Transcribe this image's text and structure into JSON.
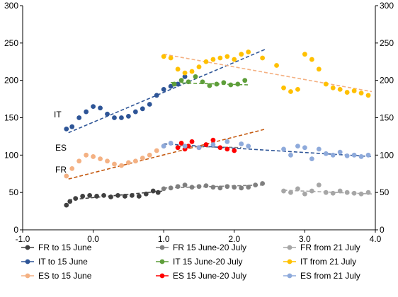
{
  "chart_data": {
    "type": "scatter",
    "xlim": [
      -1.0,
      4.0
    ],
    "ylim": [
      0,
      300
    ],
    "x_ticks": [
      "-1.0",
      "0.0",
      "1.0",
      "2.0",
      "3.0",
      "4.0"
    ],
    "y_ticks": [
      "0",
      "50",
      "100",
      "150",
      "200",
      "250",
      "300"
    ],
    "grid": false,
    "legend_position": "bottom",
    "annotations": [
      "IT",
      "ES",
      "FR"
    ],
    "series": [
      {
        "name": "FR to 15 June",
        "color": "#404040",
        "points": [
          [
            -0.38,
            33
          ],
          [
            -0.33,
            38
          ],
          [
            -0.25,
            42
          ],
          [
            -0.15,
            45
          ],
          [
            -0.05,
            46
          ],
          [
            0.05,
            45
          ],
          [
            0.15,
            46
          ],
          [
            0.25,
            44
          ],
          [
            0.35,
            46
          ],
          [
            0.45,
            45
          ],
          [
            0.55,
            46
          ],
          [
            0.65,
            45
          ],
          [
            0.75,
            48
          ],
          [
            0.85,
            52
          ],
          [
            0.92,
            50
          ]
        ]
      },
      {
        "name": "FR 15 June-20 July",
        "color": "#7f7f7f",
        "points": [
          [
            1.0,
            55
          ],
          [
            1.1,
            56
          ],
          [
            1.2,
            58
          ],
          [
            1.3,
            60
          ],
          [
            1.4,
            57
          ],
          [
            1.5,
            58
          ],
          [
            1.6,
            59
          ],
          [
            1.7,
            57
          ],
          [
            1.8,
            56
          ],
          [
            1.9,
            58
          ],
          [
            2.0,
            57
          ],
          [
            2.1,
            56
          ],
          [
            2.2,
            57
          ],
          [
            2.3,
            60
          ],
          [
            2.4,
            62
          ]
        ]
      },
      {
        "name": "FR from 21 July",
        "color": "#a6a6a6",
        "points": [
          [
            2.7,
            52
          ],
          [
            2.8,
            50
          ],
          [
            2.9,
            55
          ],
          [
            3.0,
            48
          ],
          [
            3.1,
            52
          ],
          [
            3.2,
            60
          ],
          [
            3.3,
            50
          ],
          [
            3.4,
            49
          ],
          [
            3.5,
            52
          ],
          [
            3.6,
            50
          ],
          [
            3.7,
            49
          ],
          [
            3.8,
            48
          ],
          [
            3.9,
            50
          ]
        ]
      },
      {
        "name": "IT to 15 June",
        "color": "#2e5597",
        "points": [
          [
            -0.38,
            135
          ],
          [
            -0.3,
            138
          ],
          [
            -0.2,
            150
          ],
          [
            -0.1,
            158
          ],
          [
            0.0,
            165
          ],
          [
            0.1,
            163
          ],
          [
            0.2,
            155
          ],
          [
            0.3,
            150
          ],
          [
            0.4,
            150
          ],
          [
            0.5,
            152
          ],
          [
            0.6,
            158
          ],
          [
            0.7,
            162
          ],
          [
            0.8,
            168
          ],
          [
            0.9,
            180
          ],
          [
            1.0,
            188
          ],
          [
            1.1,
            192
          ],
          [
            1.2,
            195
          ],
          [
            1.3,
            205
          ]
        ]
      },
      {
        "name": "IT 15 June-20 July",
        "color": "#5e9e3a",
        "points": [
          [
            1.15,
            195
          ],
          [
            1.25,
            200
          ],
          [
            1.35,
            198
          ],
          [
            1.45,
            205
          ],
          [
            1.55,
            198
          ],
          [
            1.65,
            193
          ],
          [
            1.75,
            195
          ],
          [
            1.85,
            197
          ],
          [
            1.95,
            194
          ],
          [
            2.05,
            195
          ],
          [
            2.15,
            200
          ]
        ]
      },
      {
        "name": "IT from 21 July",
        "color": "#ffc000",
        "points": [
          [
            1.0,
            232
          ],
          [
            1.1,
            230
          ],
          [
            1.2,
            215
          ],
          [
            1.3,
            210
          ],
          [
            1.4,
            212
          ],
          [
            1.5,
            218
          ],
          [
            1.6,
            225
          ],
          [
            1.7,
            228
          ],
          [
            1.8,
            230
          ],
          [
            1.9,
            232
          ],
          [
            2.0,
            228
          ],
          [
            2.1,
            235
          ],
          [
            2.2,
            238
          ],
          [
            2.4,
            230
          ],
          [
            2.6,
            220
          ],
          [
            2.7,
            190
          ],
          [
            2.8,
            185
          ],
          [
            2.9,
            188
          ],
          [
            3.0,
            235
          ],
          [
            3.1,
            228
          ],
          [
            3.2,
            215
          ],
          [
            3.3,
            195
          ],
          [
            3.4,
            190
          ],
          [
            3.5,
            188
          ],
          [
            3.6,
            184
          ],
          [
            3.7,
            186
          ],
          [
            3.8,
            183
          ],
          [
            3.9,
            180
          ]
        ]
      },
      {
        "name": "ES to 15 June",
        "color": "#f4b183",
        "points": [
          [
            -0.38,
            72
          ],
          [
            -0.3,
            82
          ],
          [
            -0.2,
            92
          ],
          [
            -0.1,
            100
          ],
          [
            0.0,
            98
          ],
          [
            0.1,
            95
          ],
          [
            0.2,
            92
          ],
          [
            0.3,
            88
          ],
          [
            0.4,
            86
          ],
          [
            0.5,
            90
          ],
          [
            0.6,
            92
          ],
          [
            0.7,
            96
          ],
          [
            0.8,
            100
          ],
          [
            0.9,
            106
          ],
          [
            1.0,
            112
          ]
        ]
      },
      {
        "name": "ES 15 June-20 July",
        "color": "#ff0000",
        "points": [
          [
            1.2,
            110
          ],
          [
            1.25,
            116
          ],
          [
            1.3,
            108
          ],
          [
            1.35,
            112
          ],
          [
            1.4,
            118
          ],
          [
            1.5,
            110
          ],
          [
            1.6,
            114
          ],
          [
            1.7,
            120
          ],
          [
            1.8,
            110
          ],
          [
            1.9,
            108
          ],
          [
            2.0,
            106
          ]
        ]
      },
      {
        "name": "ES from 21 July",
        "color": "#8eaadb",
        "points": [
          [
            1.0,
            112
          ],
          [
            1.1,
            116
          ],
          [
            1.3,
            112
          ],
          [
            1.5,
            110
          ],
          [
            1.7,
            114
          ],
          [
            1.9,
            118
          ],
          [
            2.1,
            115
          ],
          [
            2.2,
            112
          ],
          [
            2.7,
            108
          ],
          [
            2.8,
            100
          ],
          [
            2.9,
            112
          ],
          [
            3.0,
            110
          ],
          [
            3.1,
            95
          ],
          [
            3.2,
            108
          ],
          [
            3.3,
            102
          ],
          [
            3.4,
            100
          ],
          [
            3.5,
            104
          ],
          [
            3.6,
            99
          ],
          [
            3.7,
            100
          ],
          [
            3.8,
            98
          ],
          [
            3.9,
            100
          ]
        ]
      }
    ],
    "trendlines": [
      {
        "series": "FR to 15 June",
        "color": "#404040",
        "x": [
          -0.35,
          1.0
        ],
        "y": [
          40,
          52
        ]
      },
      {
        "series": "FR 15 June-20 July",
        "color": "#7f7f7f",
        "x": [
          1.0,
          2.4
        ],
        "y": [
          56,
          60
        ]
      },
      {
        "series": "FR from 21 July",
        "color": "#a6a6a6",
        "x": [
          2.7,
          3.95
        ],
        "y": [
          53,
          48
        ]
      },
      {
        "series": "IT to 15 June",
        "color": "#2e5597",
        "x": [
          -0.35,
          2.45
        ],
        "y": [
          130,
          242
        ]
      },
      {
        "series": "IT 15 June-20 July",
        "color": "#5e9e3a",
        "x": [
          1.1,
          2.2
        ],
        "y": [
          197,
          194
        ]
      },
      {
        "series": "IT from 21 July",
        "color": "#f4b183",
        "x": [
          1.0,
          3.95
        ],
        "y": [
          235,
          185
        ]
      },
      {
        "series": "ES to 15 June",
        "color": "#c55a11",
        "x": [
          -0.35,
          2.45
        ],
        "y": [
          68,
          135
        ]
      },
      {
        "series": "ES 15 June-20 July",
        "color": "#7f7f7f",
        "x": [
          1.2,
          2.1
        ],
        "y": [
          112,
          110
        ]
      },
      {
        "series": "ES from 21 July",
        "color": "#2e5597",
        "x": [
          1.0,
          3.95
        ],
        "y": [
          115,
          98
        ]
      }
    ]
  }
}
